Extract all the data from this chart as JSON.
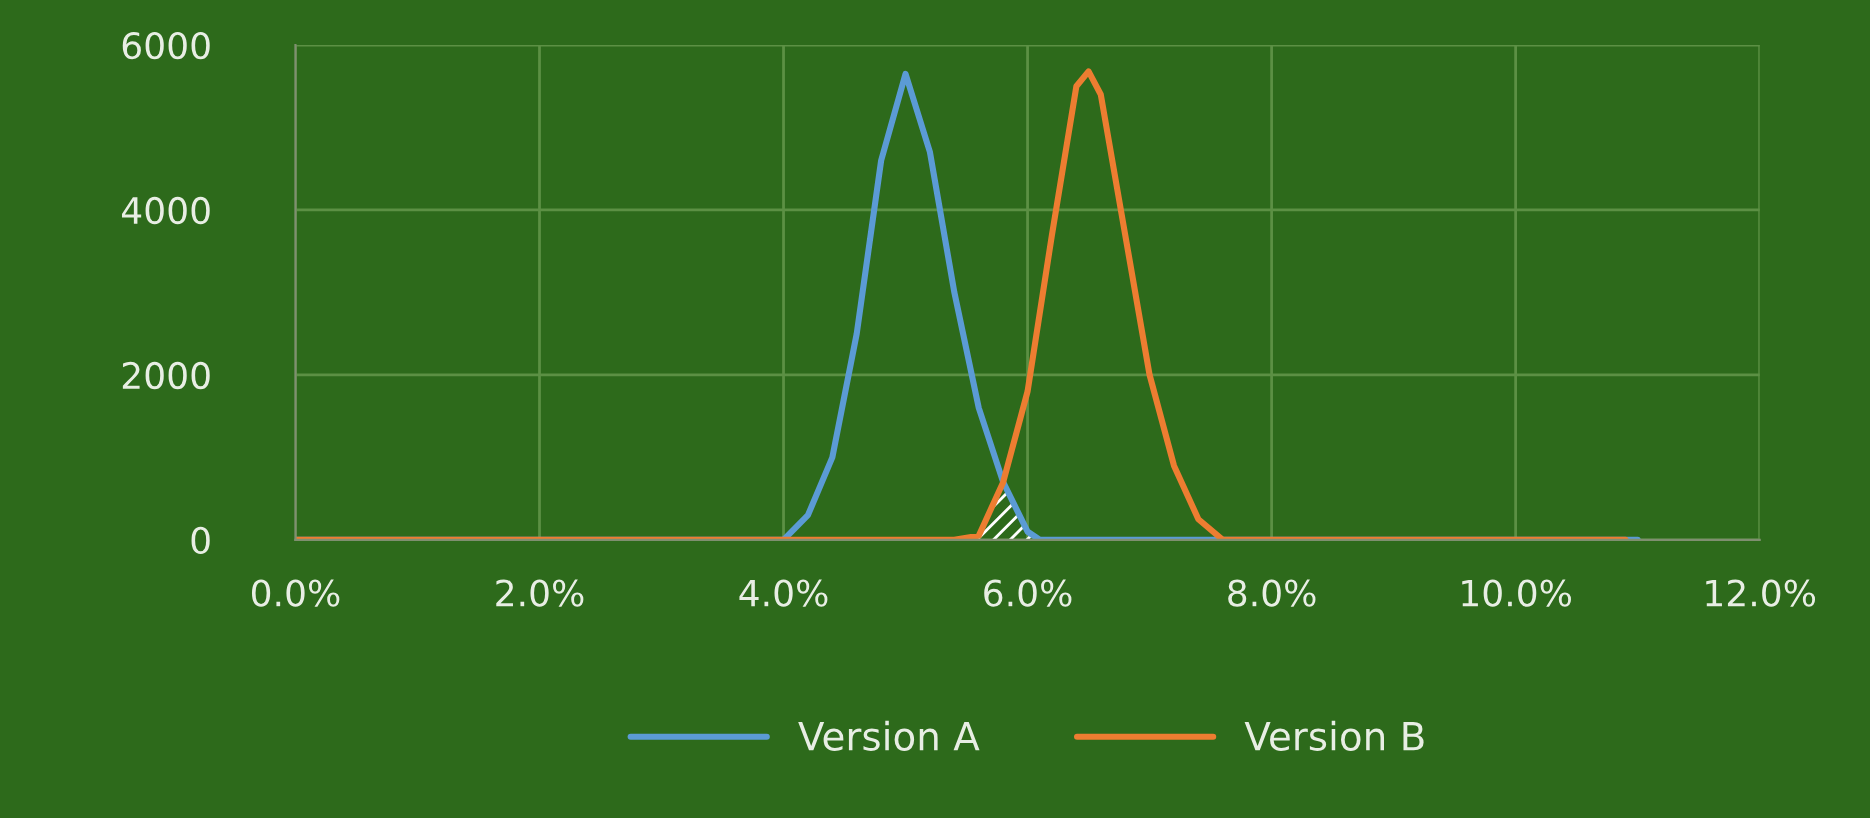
{
  "chart_data": {
    "type": "line",
    "xlim": [
      0,
      12
    ],
    "ylim": [
      0,
      6000
    ],
    "xticks": [
      {
        "value": 0,
        "label": "0.0%"
      },
      {
        "value": 2,
        "label": "2.0%"
      },
      {
        "value": 4,
        "label": "4.0%"
      },
      {
        "value": 6,
        "label": "6.0%"
      },
      {
        "value": 8,
        "label": "8.0%"
      },
      {
        "value": 10,
        "label": "10.0%"
      },
      {
        "value": 12,
        "label": "12.0%"
      }
    ],
    "yticks": [
      0,
      2000,
      4000,
      6000
    ],
    "grid": true,
    "legend": "bottom",
    "series": [
      {
        "name": "Version A",
        "color": "#5b9bd5",
        "x": [
          0,
          4.0,
          4.2,
          4.4,
          4.6,
          4.8,
          5.0,
          5.2,
          5.4,
          5.6,
          5.8,
          6.0,
          6.1,
          11.0
        ],
        "values": [
          0,
          0,
          300,
          1000,
          2500,
          4600,
          5650,
          4700,
          3000,
          1600,
          700,
          100,
          0,
          0
        ]
      },
      {
        "name": "Version B",
        "color": "#ed7d31",
        "x": [
          0,
          5.4,
          5.6,
          5.8,
          6.0,
          6.2,
          6.4,
          6.5,
          6.6,
          6.8,
          7.0,
          7.2,
          7.4,
          7.6,
          10.9
        ],
        "values": [
          0,
          0,
          50,
          700,
          1800,
          3700,
          5500,
          5680,
          5400,
          3700,
          2000,
          900,
          250,
          0,
          0
        ]
      }
    ]
  }
}
